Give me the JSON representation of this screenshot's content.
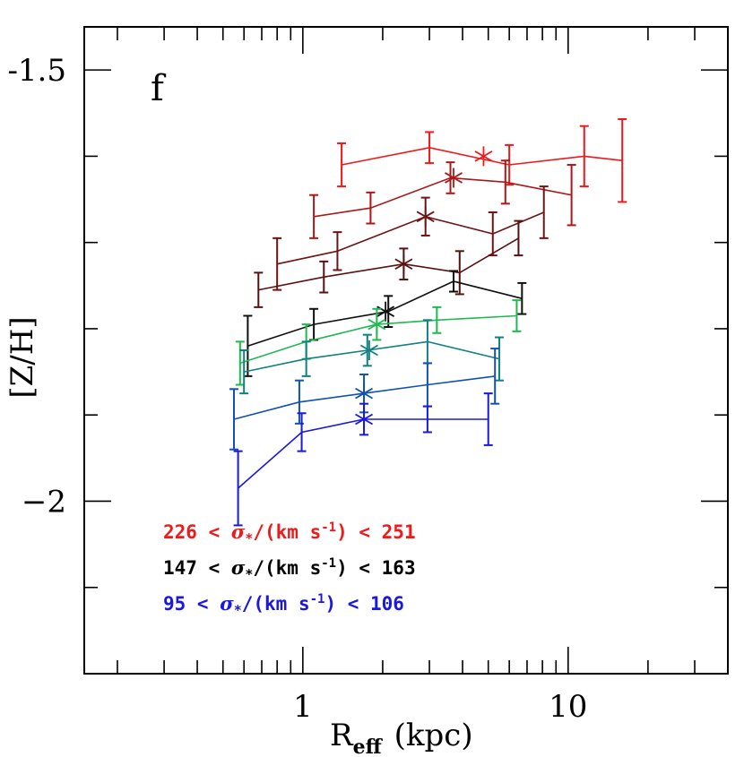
{
  "chart_data": {
    "type": "line",
    "panel_label": "f",
    "xlabel": {
      "main": "R",
      "sub": "eff",
      "unit": "(kpc)"
    },
    "ylabel": "[Z/H]",
    "xscale": "log",
    "xlim": [
      0.15,
      40
    ],
    "ylim": [
      -2.2,
      -1.45
    ],
    "x_ticks": [
      {
        "value": 1,
        "label": "1"
      },
      {
        "value": 10,
        "label": "10"
      }
    ],
    "y_ticks": [
      {
        "value": -1.5,
        "label": "-1.5"
      },
      {
        "value": -2,
        "label": "−2"
      }
    ],
    "series": [
      {
        "color": "#f01818",
        "x": [
          1.4,
          3.0,
          6.0,
          11.5,
          16.0
        ],
        "y": [
          -1.61,
          -1.59,
          -1.61,
          -1.6,
          -1.605
        ],
        "err": [
          0.025,
          0.018,
          0.023,
          0.035,
          0.048
        ],
        "star": [
          4.8,
          -1.6
        ]
      },
      {
        "color": "#aa1818",
        "x": [
          1.1,
          1.8,
          3.6,
          5.8,
          10.3
        ],
        "y": [
          -1.67,
          -1.66,
          -1.625,
          -1.63,
          -1.645
        ],
        "err": [
          0.025,
          0.018,
          0.018,
          0.025,
          0.035
        ],
        "star": [
          3.7,
          -1.625
        ]
      },
      {
        "color": "#6e1414",
        "x": [
          0.8,
          1.35,
          2.9,
          5.2,
          8.1
        ],
        "y": [
          -1.725,
          -1.71,
          -1.67,
          -1.69,
          -1.665
        ],
        "err": [
          0.03,
          0.022,
          0.022,
          0.025,
          0.03
        ],
        "star": [
          2.9,
          -1.67
        ]
      },
      {
        "color": "#5a1010",
        "x": [
          0.68,
          1.2,
          2.4,
          3.9,
          6.5
        ],
        "y": [
          -1.755,
          -1.74,
          -1.725,
          -1.735,
          -1.695
        ],
        "err": [
          0.02,
          0.018,
          0.018,
          0.025,
          0.02
        ],
        "star": [
          2.4,
          -1.725
        ]
      },
      {
        "color": "#101010",
        "x": [
          0.62,
          1.1,
          2.1,
          3.7,
          6.7
        ],
        "y": [
          -1.82,
          -1.795,
          -1.78,
          -1.745,
          -1.765
        ],
        "err": [
          0.035,
          0.018,
          0.018,
          0.012,
          0.018
        ],
        "star": [
          2.05,
          -1.78
        ]
      },
      {
        "color": "#20b850",
        "x": [
          0.58,
          1.03,
          1.9,
          3.2,
          6.4
        ],
        "y": [
          -1.84,
          -1.815,
          -1.795,
          -1.79,
          -1.785
        ],
        "err": [
          0.025,
          0.02,
          0.018,
          0.015,
          0.018
        ],
        "star": [
          1.9,
          -1.795
        ]
      },
      {
        "color": "#108080",
        "x": [
          0.6,
          1.03,
          1.75,
          2.95,
          5.5
        ],
        "y": [
          -1.85,
          -1.835,
          -1.825,
          -1.815,
          -1.835
        ],
        "err": [
          0.025,
          0.02,
          0.018,
          0.025,
          0.025
        ],
        "star": [
          1.78,
          -1.825
        ]
      },
      {
        "color": "#1050b8",
        "x": [
          0.55,
          0.97,
          1.7,
          2.95,
          5.3
        ],
        "y": [
          -1.905,
          -1.885,
          -1.875,
          -1.865,
          -1.855
        ],
        "err": [
          0.035,
          0.025,
          0.022,
          0.025,
          0.032
        ],
        "star": [
          1.7,
          -1.875
        ]
      },
      {
        "color": "#1818e0",
        "x": [
          0.57,
          0.99,
          1.7,
          2.95,
          5.0
        ],
        "y": [
          -1.985,
          -1.92,
          -1.905,
          -1.905,
          -1.905
        ],
        "err": [
          0.043,
          0.022,
          0.018,
          0.015,
          0.03
        ],
        "star": [
          1.7,
          -1.905
        ]
      }
    ],
    "legend": [
      {
        "color": "#f01818",
        "pre": "226 < ",
        "sigma": "σ",
        "star": "*",
        "mid": "/(km s",
        "exp": "-1",
        "post": ") < 251"
      },
      {
        "color": "#000000",
        "pre": "147 < ",
        "sigma": "σ",
        "star": "*",
        "mid": "/(km s",
        "exp": "-1",
        "post": ") < 163"
      },
      {
        "color": "#1818e0",
        "pre": " 95 < ",
        "sigma": "σ",
        "star": "*",
        "mid": "/(km s",
        "exp": "-1",
        "post": ") < 106"
      }
    ]
  }
}
